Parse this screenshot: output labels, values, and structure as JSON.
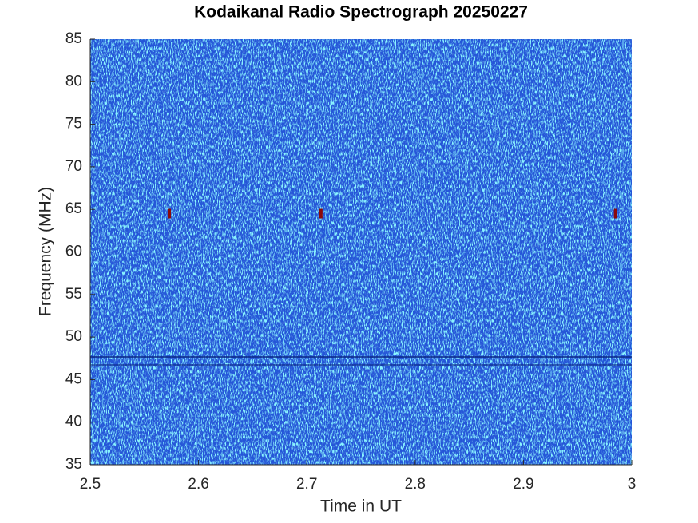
{
  "chart_data": {
    "type": "heatmap",
    "title": "Kodaikanal Radio Spectrograph  20250227",
    "x_label": "Time in UT",
    "y_label": "Frequency (MHz)",
    "xlim": [
      2.5,
      3
    ],
    "xticks": [
      2.5,
      2.6,
      2.7,
      2.8,
      2.9,
      3
    ],
    "ylim": [
      35,
      85
    ],
    "yticks": [
      35,
      40,
      45,
      50,
      55,
      60,
      65,
      70,
      75,
      80,
      85
    ],
    "spots": {
      "color": "#8b0a0a",
      "x": [
        2.573,
        2.713,
        2.985
      ],
      "y": [
        64.5,
        64.5,
        64.5
      ]
    }
  }
}
